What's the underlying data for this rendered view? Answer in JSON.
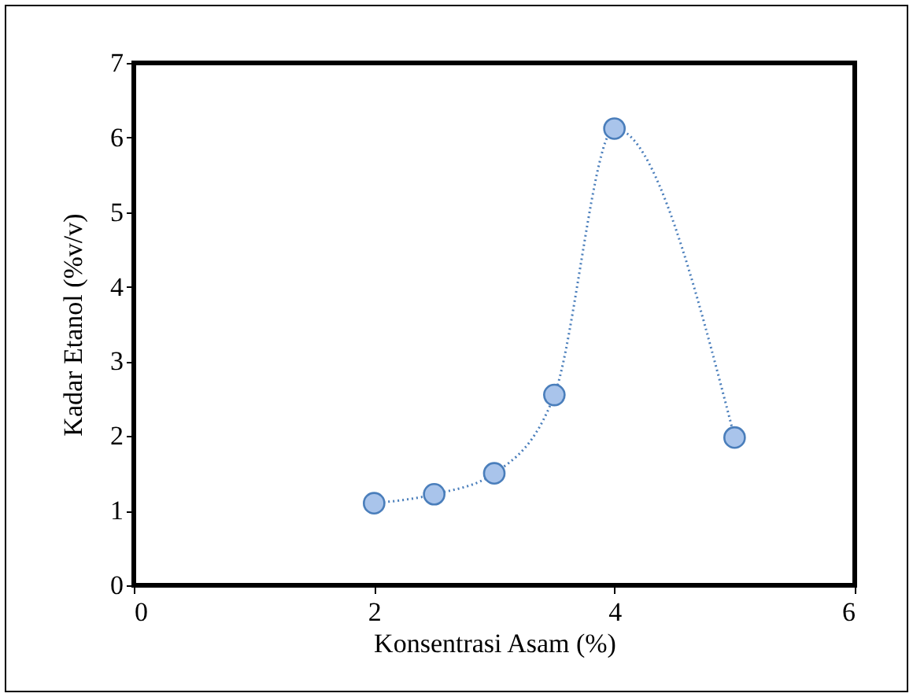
{
  "chart_data": {
    "type": "line",
    "xlabel": "Konsentrasi Asam (%)",
    "ylabel": "Kadar Etanol (%v/v)",
    "x": [
      2,
      2.5,
      3,
      3.5,
      4,
      5
    ],
    "series": [
      {
        "color": "#4a7ebb",
        "values": [
          1.1,
          1.22,
          1.5,
          2.55,
          6.12,
          1.98
        ]
      }
    ],
    "xlim": [
      0,
      6
    ],
    "xticks": [
      0,
      2,
      4,
      6
    ],
    "ylim": [
      0,
      7
    ],
    "yticks": [
      0,
      1,
      2,
      3,
      4,
      5,
      6,
      7
    ],
    "marker": "circle",
    "line_style": "dotted"
  }
}
